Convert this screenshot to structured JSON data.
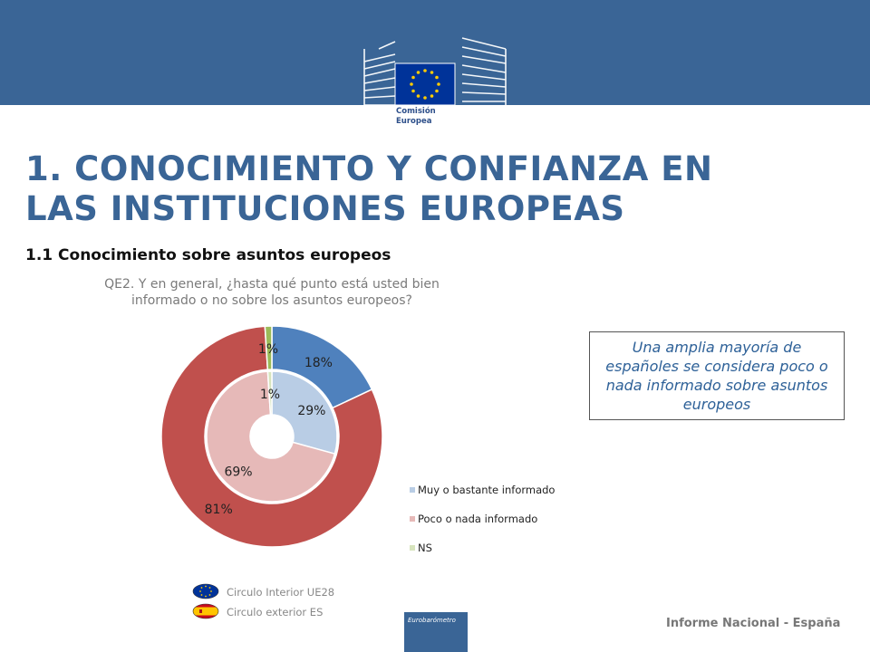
{
  "header": {
    "logo_lines": [
      "Comisión",
      "Europea"
    ],
    "colors": {
      "banner": "#3a6596",
      "title": "#3a6596",
      "eu_flag": "#003399",
      "eu_star": "#ffcc00"
    }
  },
  "title_lines": [
    "1. CONOCIMIENTO Y CONFIANZA EN",
    "LAS INSTITUCIONES EUROPEAS"
  ],
  "subtitle": "1.1 Conocimiento sobre asuntos europeos",
  "question_lines": [
    "QE2. Y en general, ¿hasta qué punto está usted bien",
    "informado o no sobre los asuntos europeos?"
  ],
  "chart_data": {
    "type": "pie",
    "variant": "double-donut",
    "categories": [
      "Muy o bastante informado",
      "Poco o nada informado",
      "NS"
    ],
    "series": [
      {
        "name": "Circulo exterior ES",
        "ring": "outer",
        "values": [
          18,
          81,
          1
        ],
        "labels": [
          "18%",
          "81%",
          "1%"
        ],
        "colors": [
          "#4f81bd",
          "#c0504d",
          "#9bbb59"
        ]
      },
      {
        "name": "Circulo Interior UE28",
        "ring": "inner",
        "values": [
          29,
          69,
          1
        ],
        "labels": [
          "29%",
          "69%",
          "1%"
        ],
        "colors": [
          "#b9cde5",
          "#e6b9b8",
          "#d7e4bd"
        ]
      }
    ],
    "legend": {
      "placement": "bottom-right",
      "items": [
        {
          "label": "Muy o bastante informado",
          "color": "#b9cde5"
        },
        {
          "label": "Poco o nada informado",
          "color": "#e6b9b8"
        },
        {
          "label": "NS",
          "color": "#d7e4bd"
        }
      ]
    }
  },
  "callout": "Una amplia mayoría de españoles se considera poco o nada informado sobre asuntos europeos",
  "circle_legend": [
    {
      "label": "Circulo Interior UE28",
      "icon": "eu-flag-icon"
    },
    {
      "label": "Circulo exterior ES",
      "icon": "spain-flag-icon"
    }
  ],
  "eurobarometer_label": "Eurobarómetro",
  "footer": "Informe Nacional - España"
}
